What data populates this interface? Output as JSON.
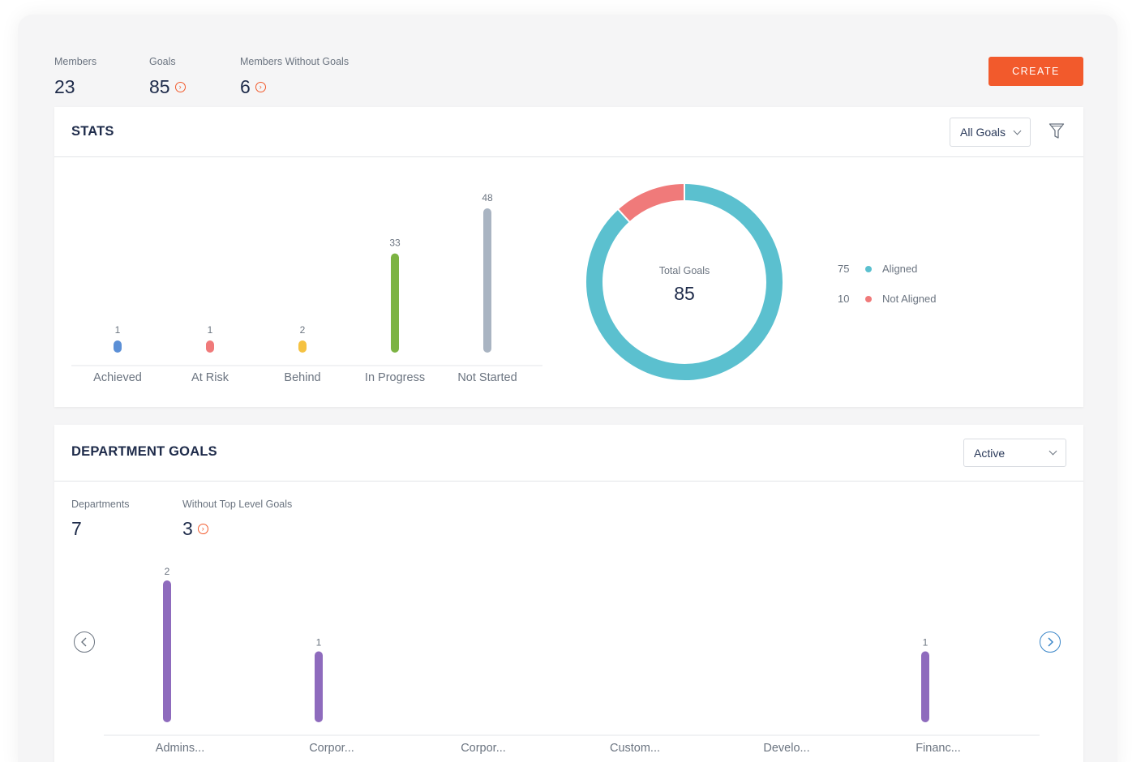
{
  "summary": {
    "members_label": "Members",
    "members_value": "23",
    "goals_label": "Goals",
    "goals_value": "85",
    "without_goals_label": "Members Without Goals",
    "without_goals_value": "6",
    "create_label": "CREATE"
  },
  "stats": {
    "title": "STATS",
    "filter_select": "All Goals",
    "donut_label": "Total Goals",
    "donut_value": "85"
  },
  "department": {
    "title": "DEPARTMENT GOALS",
    "status_select": "Active",
    "departments_label": "Departments",
    "departments_value": "7",
    "without_top_label": "Without Top Level Goals",
    "without_top_value": "3"
  },
  "colors": {
    "accent": "#f25a2c",
    "achieved": "#5b8fd6",
    "at_risk": "#f07a7a",
    "behind": "#f5c242",
    "in_progress": "#7cb342",
    "not_started": "#a9b4c2",
    "aligned": "#5bc0cf",
    "not_aligned": "#f07a7a",
    "department_bar": "#8e6bbd",
    "nav_active": "#3a86c8"
  },
  "chart_data": [
    {
      "type": "bar",
      "categories": [
        "Achieved",
        "At Risk",
        "Behind",
        "In Progress",
        "Not Started"
      ],
      "values": [
        1,
        1,
        2,
        33,
        48
      ],
      "title": "",
      "xlabel": "",
      "ylabel": "",
      "ylim": [
        0,
        48
      ]
    },
    {
      "type": "pie",
      "categories": [
        "Aligned",
        "Not Aligned"
      ],
      "values": [
        75,
        10
      ],
      "title": "Total Goals"
    },
    {
      "type": "bar",
      "categories": [
        "Admins...",
        "Corpor...",
        "Corpor...",
        "Custom...",
        "Develo...",
        "Financ..."
      ],
      "values": [
        2,
        1,
        0,
        0,
        0,
        1
      ],
      "title": "",
      "xlabel": "",
      "ylabel": "",
      "ylim": [
        0,
        2
      ]
    }
  ]
}
